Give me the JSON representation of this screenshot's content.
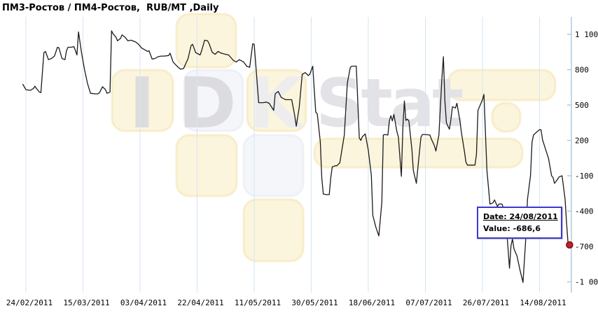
{
  "header": {
    "title": "ПМ3-Ростов / ПМ4-Ростов,  RUB/MT ,Daily"
  },
  "tooltip": {
    "date_line": "Date: 24/08/2011",
    "value_line": "Value: -686,6"
  },
  "watermark": {
    "letters": [
      "I",
      "D",
      "K"
    ],
    "brand_text": "Stat",
    "tile_color": "#FBF1D2",
    "tile_alt_color": "#F2F4F9",
    "letter_color": "#D9D9DD",
    "brand_color": "#E2E2E6"
  },
  "chart_data": {
    "type": "line",
    "title": "ПМ3-Ростов / ПМ4-Ростов, RUB/MT, Daily",
    "x_start_date": "24/02/2011",
    "x_tick_interval_days": 19,
    "x_tick_labels": [
      "24/02/2011",
      "15/03/2011",
      "03/04/2011",
      "22/04/2011",
      "11/05/2011",
      "30/05/2011",
      "18/06/2011",
      "07/07/2011",
      "26/07/2011",
      "14/08/2011"
    ],
    "y_ticks": [
      {
        "value": 1100,
        "label": "1 100"
      },
      {
        "value": 800,
        "label": "800"
      },
      {
        "value": 500,
        "label": "500"
      },
      {
        "value": 200,
        "label": "200"
      },
      {
        "value": -100,
        "label": "-100"
      },
      {
        "value": -400,
        "label": "-400"
      },
      {
        "value": -700,
        "label": "-700"
      },
      {
        "value": -1000,
        "label": "-1 000"
      }
    ],
    "ylim": [
      -1060,
      1160
    ],
    "grid": true,
    "legend": false,
    "line_color": "#1B1B1B",
    "marker_color": "#C32020",
    "marker_edge_color": "#7E0E0E",
    "grid_color": "#D3E5F3",
    "axis_color": "#AECBE2",
    "last_point": {
      "date": "24/08/2011",
      "value": -686.6,
      "value_label": "-686,6"
    },
    "series": [
      {
        "name": "ПМ3-Ростов / ПМ4-Ростов",
        "points": [
          [
            -1,
            675
          ],
          [
            0,
            630
          ],
          [
            1.5,
            625
          ],
          [
            2.5,
            640
          ],
          [
            3,
            660
          ],
          [
            3.5,
            640
          ],
          [
            4.5,
            610
          ],
          [
            5,
            605
          ],
          [
            6,
            945
          ],
          [
            6.5,
            955
          ],
          [
            7.5,
            885
          ],
          [
            8.5,
            895
          ],
          [
            9.5,
            915
          ],
          [
            10.5,
            990
          ],
          [
            11,
            985
          ],
          [
            12,
            895
          ],
          [
            13,
            885
          ],
          [
            13.5,
            960
          ],
          [
            14,
            990
          ],
          [
            15,
            990
          ],
          [
            16,
            995
          ],
          [
            16.5,
            960
          ],
          [
            17,
            925
          ],
          [
            17.5,
            1120
          ],
          [
            18.5,
            945
          ],
          [
            19.5,
            805
          ],
          [
            20.5,
            685
          ],
          [
            21.5,
            600
          ],
          [
            23,
            595
          ],
          [
            24,
            595
          ],
          [
            24.5,
            605
          ],
          [
            25.5,
            655
          ],
          [
            26.5,
            630
          ],
          [
            27,
            600
          ],
          [
            28,
            610
          ],
          [
            28.5,
            1130
          ],
          [
            29,
            1105
          ],
          [
            30,
            1075
          ],
          [
            30.5,
            1045
          ],
          [
            31.5,
            1065
          ],
          [
            32,
            1095
          ],
          [
            33,
            1075
          ],
          [
            34,
            1045
          ],
          [
            35,
            1050
          ],
          [
            36.5,
            1035
          ],
          [
            37.5,
            1015
          ],
          [
            38.5,
            985
          ],
          [
            39.5,
            970
          ],
          [
            40.5,
            955
          ],
          [
            41,
            960
          ],
          [
            42,
            890
          ],
          [
            43,
            895
          ],
          [
            44,
            910
          ],
          [
            45,
            915
          ],
          [
            46,
            915
          ],
          [
            47.5,
            920
          ],
          [
            48,
            940
          ],
          [
            49,
            865
          ],
          [
            50.5,
            825
          ],
          [
            51.5,
            805
          ],
          [
            52.5,
            810
          ],
          [
            54,
            895
          ],
          [
            55,
            1005
          ],
          [
            55.5,
            1015
          ],
          [
            56.5,
            945
          ],
          [
            58,
            925
          ],
          [
            58.5,
            960
          ],
          [
            59.5,
            1050
          ],
          [
            60.5,
            1045
          ],
          [
            61,
            1020
          ],
          [
            62,
            950
          ],
          [
            63,
            930
          ],
          [
            64,
            955
          ],
          [
            65,
            940
          ],
          [
            66.5,
            930
          ],
          [
            67.5,
            925
          ],
          [
            69,
            880
          ],
          [
            70,
            865
          ],
          [
            71,
            885
          ],
          [
            72.5,
            865
          ],
          [
            73.5,
            830
          ],
          [
            74.5,
            820
          ],
          [
            75.5,
            1020
          ],
          [
            76,
            1015
          ],
          [
            76.5,
            855
          ],
          [
            77.5,
            520
          ],
          [
            79,
            520
          ],
          [
            80,
            525
          ],
          [
            81,
            515
          ],
          [
            82.5,
            455
          ],
          [
            83,
            595
          ],
          [
            84,
            615
          ],
          [
            85,
            565
          ],
          [
            86.5,
            545
          ],
          [
            87.5,
            545
          ],
          [
            88.5,
            545
          ],
          [
            89.5,
            410
          ],
          [
            90,
            320
          ],
          [
            91,
            480
          ],
          [
            92,
            760
          ],
          [
            93,
            775
          ],
          [
            94,
            750
          ],
          [
            94.5,
            760
          ],
          [
            95.5,
            830
          ],
          [
            96.5,
            440
          ],
          [
            97,
            425
          ],
          [
            98,
            190
          ],
          [
            98.5,
            -115
          ],
          [
            99,
            -255
          ],
          [
            100,
            -260
          ],
          [
            101,
            -260
          ],
          [
            101.5,
            -115
          ],
          [
            102,
            -25
          ],
          [
            103,
            -15
          ],
          [
            103.5,
            -15
          ],
          [
            104.5,
            10
          ],
          [
            106,
            245
          ],
          [
            107,
            685
          ],
          [
            108,
            820
          ],
          [
            108.5,
            830
          ],
          [
            110,
            830
          ],
          [
            111,
            220
          ],
          [
            111.5,
            200
          ],
          [
            112,
            230
          ],
          [
            113,
            255
          ],
          [
            114,
            115
          ],
          [
            115,
            -95
          ],
          [
            115.5,
            -435
          ],
          [
            116.5,
            -535
          ],
          [
            117.5,
            -610
          ],
          [
            118.5,
            -325
          ],
          [
            119,
            245
          ],
          [
            119.5,
            250
          ],
          [
            120.5,
            245
          ],
          [
            121,
            365
          ],
          [
            121.5,
            410
          ],
          [
            122,
            365
          ],
          [
            122.5,
            420
          ],
          [
            123.5,
            275
          ],
          [
            124,
            230
          ],
          [
            124.5,
            65
          ],
          [
            125,
            -105
          ],
          [
            125.5,
            305
          ],
          [
            126,
            535
          ],
          [
            126.5,
            370
          ],
          [
            127,
            380
          ],
          [
            127.5,
            365
          ],
          [
            128.5,
            125
          ],
          [
            129,
            -55
          ],
          [
            130,
            -165
          ],
          [
            131,
            95
          ],
          [
            131.5,
            225
          ],
          [
            132,
            250
          ],
          [
            133,
            250
          ],
          [
            134.5,
            245
          ],
          [
            135,
            210
          ],
          [
            136,
            155
          ],
          [
            136.5,
            110
          ],
          [
            137.5,
            245
          ],
          [
            138.5,
            730
          ],
          [
            139,
            910
          ],
          [
            139.5,
            530
          ],
          [
            140,
            350
          ],
          [
            140.5,
            320
          ],
          [
            141,
            295
          ],
          [
            141.5,
            380
          ],
          [
            142,
            485
          ],
          [
            143,
            475
          ],
          [
            143.5,
            515
          ],
          [
            144.5,
            365
          ],
          [
            145,
            265
          ],
          [
            146,
            105
          ],
          [
            146.5,
            15
          ],
          [
            147,
            -10
          ],
          [
            148.5,
            -10
          ],
          [
            149.5,
            -10
          ],
          [
            150,
            80
          ],
          [
            150.5,
            455
          ],
          [
            152,
            545
          ],
          [
            152.5,
            590
          ],
          [
            153.5,
            -55
          ],
          [
            154.5,
            -340
          ],
          [
            155.5,
            -330
          ],
          [
            156,
            -305
          ],
          [
            157,
            -360
          ],
          [
            157.5,
            -340
          ],
          [
            158.5,
            -340
          ],
          [
            159,
            -375
          ],
          [
            160,
            -540
          ],
          [
            161,
            -885
          ],
          [
            161.5,
            -690
          ],
          [
            162,
            -635
          ],
          [
            162.5,
            -720
          ],
          [
            163.5,
            -780
          ],
          [
            164.5,
            -900
          ],
          [
            165.5,
            -1005
          ],
          [
            166.5,
            -600
          ],
          [
            167,
            -300
          ],
          [
            168,
            -100
          ],
          [
            168.5,
            185
          ],
          [
            169,
            245
          ],
          [
            170,
            270
          ],
          [
            171,
            290
          ],
          [
            171.5,
            290
          ],
          [
            172,
            205
          ],
          [
            173,
            125
          ],
          [
            174,
            45
          ],
          [
            175,
            -100
          ],
          [
            175.5,
            -115
          ],
          [
            176,
            -165
          ],
          [
            177,
            -130
          ],
          [
            177.5,
            -110
          ],
          [
            178.5,
            -100
          ],
          [
            179.5,
            -300
          ],
          [
            180,
            -500
          ],
          [
            180.5,
            -680
          ],
          [
            181,
            -686.6
          ]
        ]
      }
    ]
  }
}
